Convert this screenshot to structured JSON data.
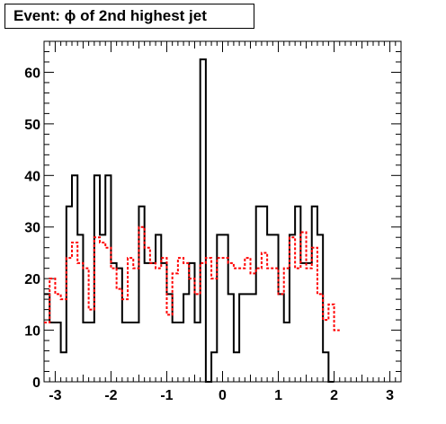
{
  "chart_data": {
    "type": "line",
    "title": "Event: ϕ of 2nd highest jet",
    "xlabel": "",
    "ylabel": "",
    "xlim": [
      -3.2,
      3.2
    ],
    "ylim": [
      0,
      66
    ],
    "bins": {
      "min": -3.2,
      "width": 0.1
    },
    "x_ticks": [
      -3,
      -2,
      -1,
      0,
      1,
      2,
      3
    ],
    "y_ticks": [
      0,
      10,
      20,
      30,
      40,
      50,
      60
    ],
    "series": [
      {
        "style": "solid",
        "color": "#000000",
        "values": [
          17,
          11.5,
          11.5,
          5.7,
          34,
          40,
          28.5,
          11.5,
          11.5,
          40,
          28.5,
          40,
          23,
          22,
          11.5,
          11.5,
          11.5,
          34,
          23,
          23,
          28.5,
          23,
          17,
          11.5,
          11.5,
          17,
          23,
          11.5,
          62.5,
          0,
          5.7,
          28.5,
          28.5,
          17,
          5.7,
          17,
          17,
          17,
          34,
          34,
          28.5,
          28.5,
          17,
          11.5,
          28.5,
          34,
          23,
          23,
          34,
          28.5,
          5.7,
          0
        ]
      },
      {
        "style": "dashed",
        "color": "#ff0000",
        "values": [
          11.5,
          20,
          17,
          16,
          24,
          27,
          23,
          22,
          14,
          28,
          27,
          26,
          22,
          18,
          16,
          24,
          22,
          30,
          26,
          23,
          22,
          24,
          13,
          21,
          24,
          23,
          20,
          17,
          23,
          24,
          20,
          24,
          24,
          23,
          22,
          22,
          24,
          21,
          22,
          25,
          22,
          22,
          17,
          22,
          28,
          22,
          29,
          22,
          26,
          17,
          12,
          15,
          10
        ]
      }
    ]
  }
}
